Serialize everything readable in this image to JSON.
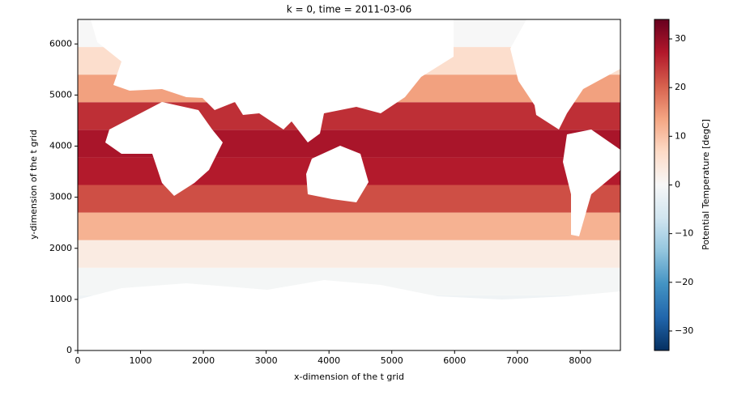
{
  "chart_data": {
    "type": "heatmap",
    "title": "k = 0, time = 2011-03-06",
    "x_label": "x-dimension of the t grid",
    "y_label": "y-dimension of the t grid",
    "colorbar_label": "Potential Temperature [degC]",
    "cmap": "RdBu_r",
    "y_edges": [
      0,
      540,
      1080,
      1620,
      2160,
      2700,
      3240,
      3780,
      4320,
      4860,
      5400,
      5940,
      6480
    ],
    "values": [
      -1.8,
      -1.5,
      -0.5,
      3,
      12,
      22,
      27,
      28,
      25,
      14,
      6,
      0
    ],
    "xlim": [
      0,
      8640
    ],
    "ylim": [
      0,
      6480
    ],
    "xticks": [
      0,
      1000,
      2000,
      3000,
      4000,
      5000,
      6000,
      7000,
      8000
    ],
    "yticks": [
      0,
      1000,
      2000,
      3000,
      4000,
      5000,
      6000
    ],
    "clim": [
      -34,
      34
    ],
    "cticks": [
      {
        "value": -30,
        "label": "−30"
      },
      {
        "value": -20,
        "label": "−20"
      },
      {
        "value": -10,
        "label": "−10"
      },
      0,
      10,
      20,
      30
    ]
  }
}
